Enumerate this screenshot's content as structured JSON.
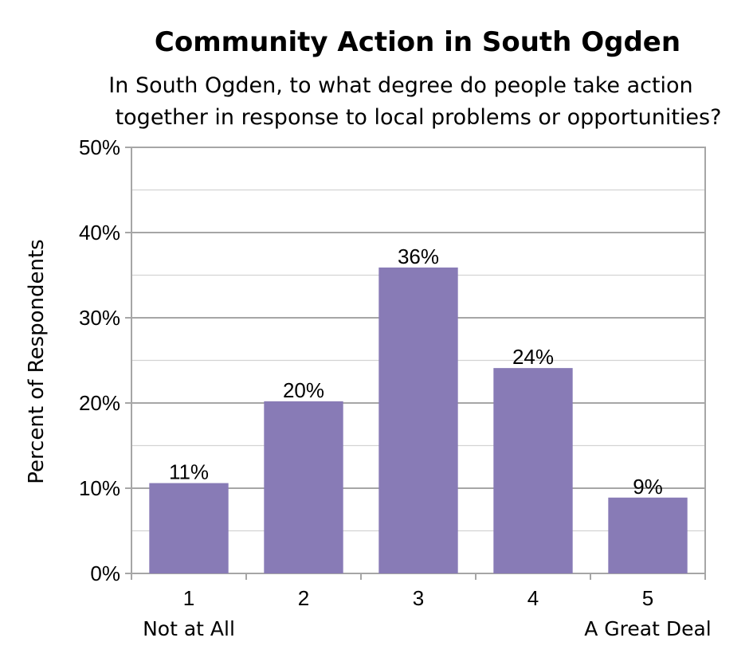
{
  "chart_data": {
    "type": "bar",
    "title": "Community Action in South Ogden",
    "subtitle_lines": [
      "In South Ogden, to what degree do people take action",
      "together in response to local problems or opportunities?"
    ],
    "ylabel": "Percent of Respondents",
    "xlabel": "",
    "categories": [
      "1",
      "2",
      "3",
      "4",
      "5"
    ],
    "category_sublabels": [
      "Not at All",
      "",
      "",
      "",
      "A Great Deal"
    ],
    "values": [
      10.6,
      20.2,
      35.9,
      24.1,
      8.9
    ],
    "data_labels": [
      "11%",
      "20%",
      "36%",
      "24%",
      "9%"
    ],
    "ylim": [
      0,
      50
    ],
    "y_ticks": [
      0,
      10,
      20,
      30,
      40,
      50
    ],
    "y_tick_labels": [
      "0%",
      "10%",
      "20%",
      "30%",
      "40%",
      "50%"
    ],
    "y_minor_ticks": [
      5,
      15,
      25,
      35,
      45
    ],
    "grid": true,
    "legend": "none",
    "bar_color": "#887bb6",
    "gridline_color": "#a6a6a6",
    "minor_gridline_color": "#d3d3d3"
  }
}
